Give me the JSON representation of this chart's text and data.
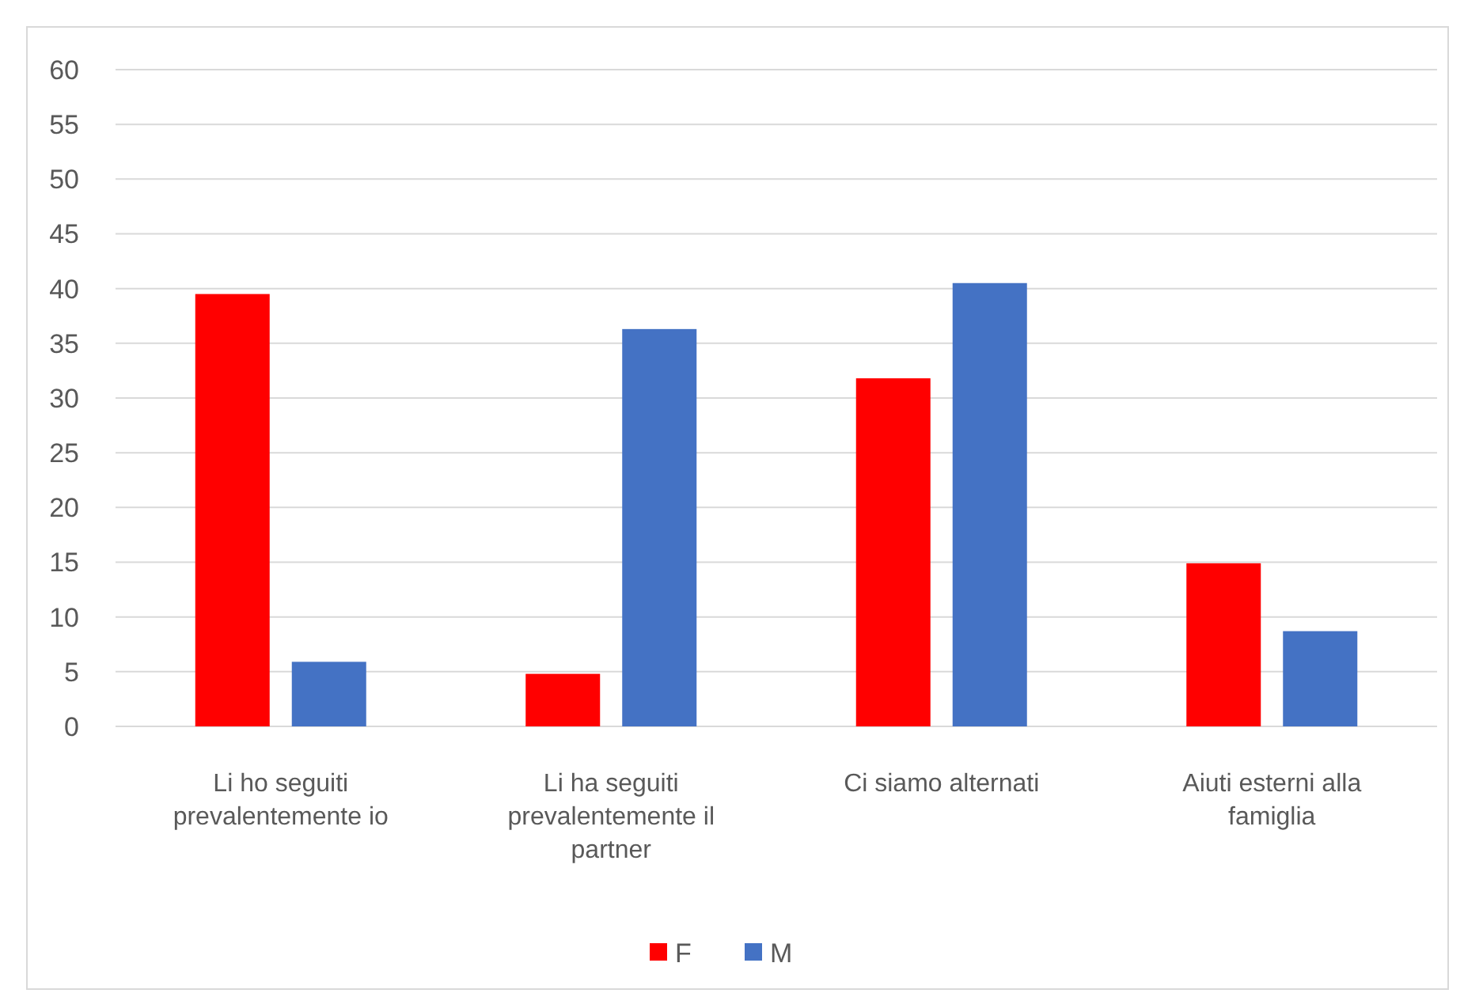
{
  "chart_data": {
    "type": "bar",
    "categories": [
      "Li ho seguiti prevalentemente io",
      "Li ha seguiti prevalentemente il partner",
      "Ci siamo alternati",
      "Aiuti esterni alla famiglia"
    ],
    "series": [
      {
        "name": "F",
        "color": "#ff0000",
        "values": [
          39.5,
          4.8,
          31.8,
          14.9
        ]
      },
      {
        "name": "M",
        "color": "#4472c4",
        "values": [
          5.9,
          36.3,
          40.5,
          8.7
        ]
      }
    ],
    "ylim": [
      0,
      60
    ],
    "yticks": [
      0,
      5,
      10,
      15,
      20,
      25,
      30,
      35,
      40,
      45,
      50,
      55,
      60
    ],
    "grid": "y",
    "legend": "bottom"
  }
}
